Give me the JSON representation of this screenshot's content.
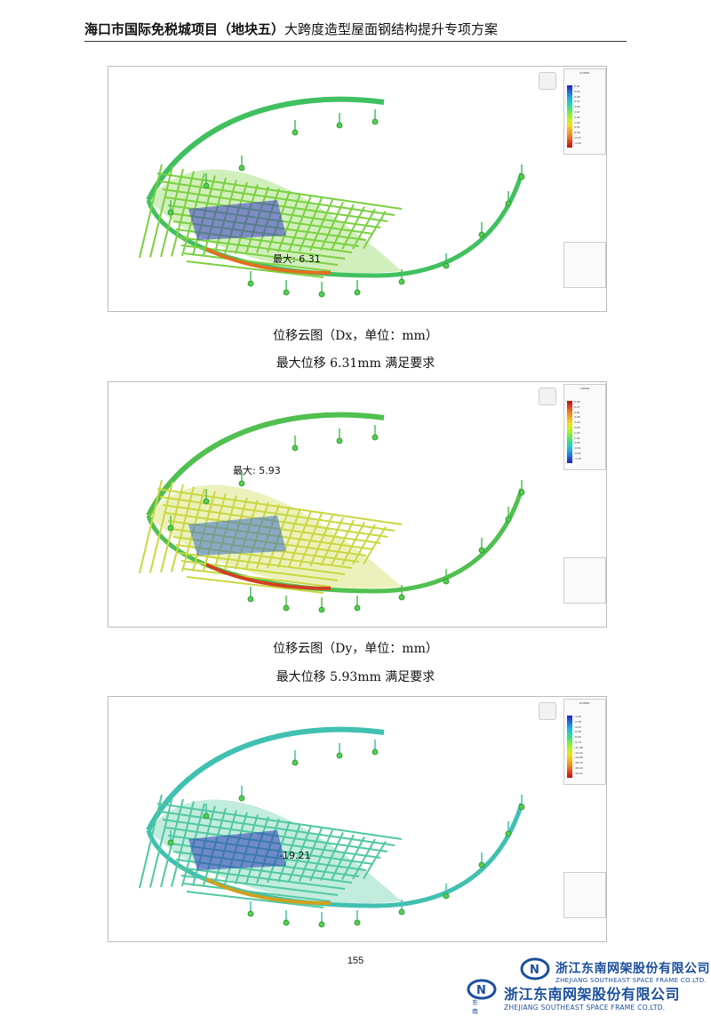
{
  "header": {
    "title_bold": "海口市国际免税城项目（地块五）",
    "title_rest": "大跨度造型屋面钢结构提升专项方案"
  },
  "figures": [
    {
      "max_label": "最大: 6.31",
      "caption": "位移云图（Dx，单位：mm）",
      "note": "最大位移 6.31mm 满足要求",
      "legend_title": "X-DISPL",
      "legend_values": [
        "6.31",
        "5.64",
        "4.98",
        "4.31",
        "3.64",
        "2.97",
        "2.31",
        "1.64",
        "0.97",
        "0.30",
        "-0.37",
        "-1.04"
      ],
      "legend_colors": [
        "#2020c0",
        "#2060e0",
        "#20a0e0",
        "#20d0c0",
        "#40e080",
        "#80f040",
        "#c0f020",
        "#f0e020",
        "#f0b020",
        "#f08020",
        "#e04020",
        "#c01010"
      ]
    },
    {
      "max_label": "最大: 5.93",
      "caption": "位移云图（Dy，单位：mm）",
      "note": "最大位移 5.93mm 满足要求",
      "legend_title": "Y-DISPL",
      "legend_values": [
        "5.93",
        "5.27",
        "4.61",
        "3.95",
        "3.29",
        "2.63",
        "1.97",
        "1.31",
        "0.65",
        "-0.01",
        "-0.67",
        "-1.33"
      ],
      "legend_colors": [
        "#c01010",
        "#e04020",
        "#f08020",
        "#f0b020",
        "#f0e020",
        "#c0f020",
        "#80f040",
        "#40e080",
        "#20d0c0",
        "#20a0e0",
        "#2060e0",
        "#2020c0"
      ]
    },
    {
      "max_label": "-19.21",
      "caption": "",
      "note": "",
      "legend_title": "Z-DISPL",
      "legend_values": [
        "-1.04",
        "-2.78",
        "-4.52",
        "-6.26",
        "-8.00",
        "-9.74",
        "-11.48",
        "-13.22",
        "-14.96",
        "-16.70",
        "-18.44",
        "-19.21"
      ],
      "legend_colors": [
        "#2020c0",
        "#2060e0",
        "#20a0e0",
        "#20d0c0",
        "#40e080",
        "#80f040",
        "#c0f020",
        "#f0e020",
        "#f0b020",
        "#f08020",
        "#e04020",
        "#c01010"
      ]
    }
  ],
  "page_number": "155",
  "logo": {
    "company_cn": "浙江东南网架股份有限公司",
    "company_en": "ZHEJIANG SOUTHEAST SPACE FRAME CO.LTD.",
    "mark_text": "东南",
    "brand_color": "#1b4e9c"
  }
}
